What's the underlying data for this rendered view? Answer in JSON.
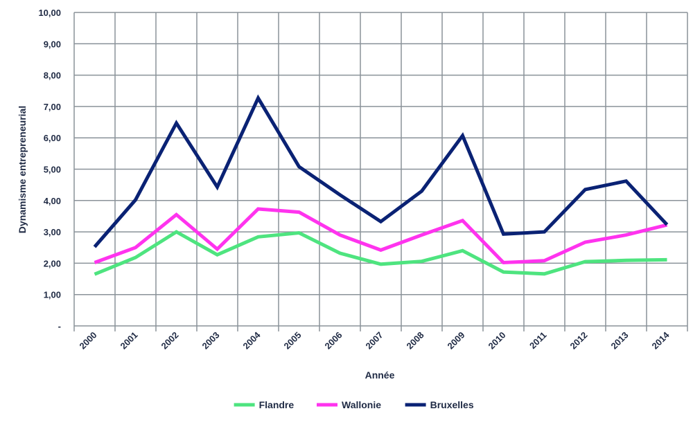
{
  "chart_data": {
    "type": "line",
    "x": [
      "2000",
      "2001",
      "2002",
      "2003",
      "2004",
      "2005",
      "2006",
      "2007",
      "2008",
      "2009",
      "2010",
      "2011",
      "2012",
      "2013",
      "2014"
    ],
    "xlabel": "Année",
    "ylabel": "Dynamisme entrepreneurial",
    "ylim": [
      0,
      10
    ],
    "yticks": [
      {
        "value": 0,
        "label": "-"
      },
      {
        "value": 1,
        "label": "1,00"
      },
      {
        "value": 2,
        "label": "2,00"
      },
      {
        "value": 3,
        "label": "3,00"
      },
      {
        "value": 4,
        "label": "4,00"
      },
      {
        "value": 5,
        "label": "5,00"
      },
      {
        "value": 6,
        "label": "6,00"
      },
      {
        "value": 7,
        "label": "7,00"
      },
      {
        "value": 8,
        "label": "8,00"
      },
      {
        "value": 9,
        "label": "9,00"
      },
      {
        "value": 10,
        "label": "10,00"
      }
    ],
    "grid": true,
    "legend_position": "bottom",
    "series": [
      {
        "name": "Flandre",
        "color": "#4ee47f",
        "values": [
          1.65,
          2.18,
          3.0,
          2.27,
          2.84,
          2.97,
          2.32,
          1.97,
          2.06,
          2.4,
          1.72,
          1.66,
          2.05,
          2.09,
          2.11
        ]
      },
      {
        "name": "Wallonie",
        "color": "#ff33ee",
        "values": [
          2.02,
          2.5,
          3.55,
          2.45,
          3.73,
          3.63,
          2.9,
          2.42,
          2.9,
          3.36,
          2.02,
          2.08,
          2.67,
          2.9,
          3.22
        ]
      },
      {
        "name": "Bruxelles",
        "color": "#0a2274",
        "values": [
          2.52,
          4.02,
          6.47,
          4.43,
          7.27,
          5.08,
          4.18,
          3.33,
          4.3,
          6.07,
          2.93,
          3.0,
          4.35,
          4.62,
          3.23
        ]
      }
    ]
  }
}
